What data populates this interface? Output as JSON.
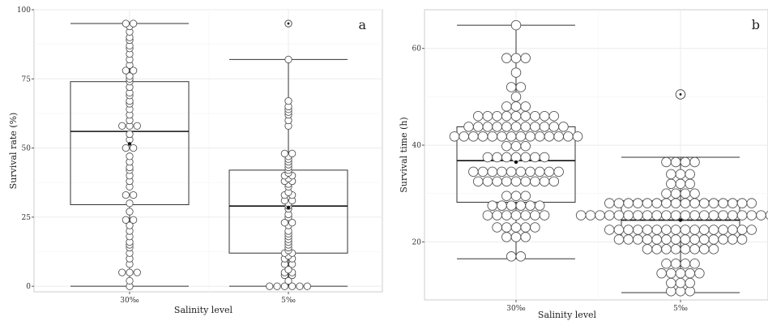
{
  "chart_data": [
    {
      "type": "boxplot",
      "panel_label": "a",
      "xlabel": "Salinity level",
      "ylabel": "Survival rate (%)",
      "ylim": [
        -2,
        100
      ],
      "yticks": [
        0,
        25,
        50,
        75,
        100
      ],
      "categories": [
        "30‰",
        "5‰"
      ],
      "boxes": [
        {
          "category": "30‰",
          "min": 0,
          "q1": 29.5,
          "median": 56,
          "q3": 74,
          "max": 95,
          "mean": 51.5,
          "outliers": []
        },
        {
          "category": "5‰",
          "min": 0,
          "q1": 12,
          "median": 29,
          "q3": 42,
          "max": 82,
          "mean": 28.5,
          "outliers": [
            95
          ]
        }
      ],
      "points": [
        [
          0,
          2,
          5,
          5,
          5,
          8,
          10,
          12,
          14,
          15,
          16,
          18,
          20,
          22,
          24,
          24,
          27,
          30,
          33,
          33,
          36,
          38,
          40,
          42,
          43,
          45,
          47,
          50,
          50,
          53,
          55,
          58,
          58,
          58,
          60,
          62,
          64,
          66,
          67,
          69,
          70,
          72,
          74,
          75,
          76,
          78,
          78,
          80,
          82,
          84,
          86,
          87,
          89,
          90,
          92,
          94,
          95,
          95
        ],
        [
          0,
          0,
          0,
          0,
          0,
          0,
          2,
          4,
          4,
          5,
          5,
          6,
          8,
          8,
          10,
          10,
          11,
          12,
          12,
          13,
          14,
          15,
          16,
          17,
          18,
          19,
          20,
          22,
          23,
          23,
          25,
          26,
          28,
          29,
          30,
          31,
          31,
          33,
          33,
          34,
          36,
          37,
          38,
          38,
          39,
          40,
          40,
          41,
          42,
          43,
          44,
          45,
          46,
          47,
          48,
          48,
          58,
          60,
          62,
          63,
          64,
          65,
          67,
          82
        ]
      ]
    },
    {
      "type": "boxplot",
      "panel_label": "b",
      "xlabel": "Salinity level",
      "ylabel": "Survival time (h)",
      "ylim": [
        8,
        68
      ],
      "yticks": [
        20,
        40,
        60
      ],
      "categories": [
        "30‰",
        "5‰"
      ],
      "boxes": [
        {
          "category": "30‰",
          "min": 16.5,
          "q1": 28.2,
          "median": 36.8,
          "q3": 43.8,
          "max": 64.8,
          "mean": 36.5,
          "outliers": []
        },
        {
          "category": "5‰",
          "min": 9.5,
          "q1": 20.8,
          "median": 24.5,
          "q3": 28.5,
          "max": 37.5,
          "mean": 24.5,
          "outliers": [
            50.5
          ]
        }
      ],
      "points": [
        [
          17,
          17,
          21,
          21,
          21,
          23,
          23,
          23,
          23,
          23,
          25.5,
          25.5,
          25.5,
          25.5,
          25.5,
          25.5,
          25.5,
          27.5,
          27.5,
          27.5,
          27.5,
          27.5,
          27.5,
          29.5,
          29.5,
          29.5,
          32.5,
          32.5,
          32.5,
          32.5,
          32.5,
          32.5,
          32.5,
          32.5,
          32.5,
          34.5,
          34.5,
          34.5,
          34.5,
          34.5,
          34.5,
          34.5,
          34.5,
          34.5,
          34.5,
          37.5,
          37.5,
          37.5,
          37.5,
          37.5,
          37.5,
          37.5,
          39.8,
          39.8,
          39.8,
          41.8,
          41.8,
          41.8,
          41.8,
          41.8,
          41.8,
          41.8,
          41.8,
          41.8,
          41.8,
          41.8,
          41.8,
          41.8,
          41.8,
          43.8,
          43.8,
          43.8,
          43.8,
          43.8,
          43.8,
          43.8,
          43.8,
          43.8,
          43.8,
          43.8,
          46,
          46,
          46,
          46,
          46,
          46,
          46,
          46,
          46,
          48,
          48,
          48,
          50,
          52,
          52,
          55,
          58,
          58,
          58,
          64.8
        ],
        [
          9.8,
          9.8,
          9.8,
          11.5,
          11.5,
          11.5,
          13.5,
          13.5,
          13.5,
          13.5,
          13.5,
          15.5,
          15.5,
          15.5,
          15.5,
          18.5,
          18.5,
          18.5,
          18.5,
          18.5,
          18.5,
          18.5,
          18.5,
          20.5,
          20.5,
          20.5,
          20.5,
          20.5,
          20.5,
          20.5,
          20.5,
          20.5,
          20.5,
          20.5,
          20.5,
          20.5,
          20.5,
          22.5,
          22.5,
          22.5,
          22.5,
          22.5,
          22.5,
          22.5,
          22.5,
          22.5,
          22.5,
          22.5,
          22.5,
          22.5,
          22.5,
          22.5,
          22.5,
          25.5,
          25.5,
          25.5,
          25.5,
          25.5,
          25.5,
          25.5,
          25.5,
          25.5,
          25.5,
          25.5,
          25.5,
          25.5,
          25.5,
          25.5,
          25.5,
          25.5,
          25.5,
          25.5,
          25.5,
          25.5,
          25.5,
          28,
          28,
          28,
          28,
          28,
          28,
          28,
          28,
          28,
          28,
          28,
          28,
          28,
          28,
          28,
          28,
          30,
          30,
          30,
          30,
          32,
          32,
          32,
          34,
          34,
          34,
          36.5,
          36.5,
          36.5,
          36.5
        ]
      ]
    }
  ]
}
